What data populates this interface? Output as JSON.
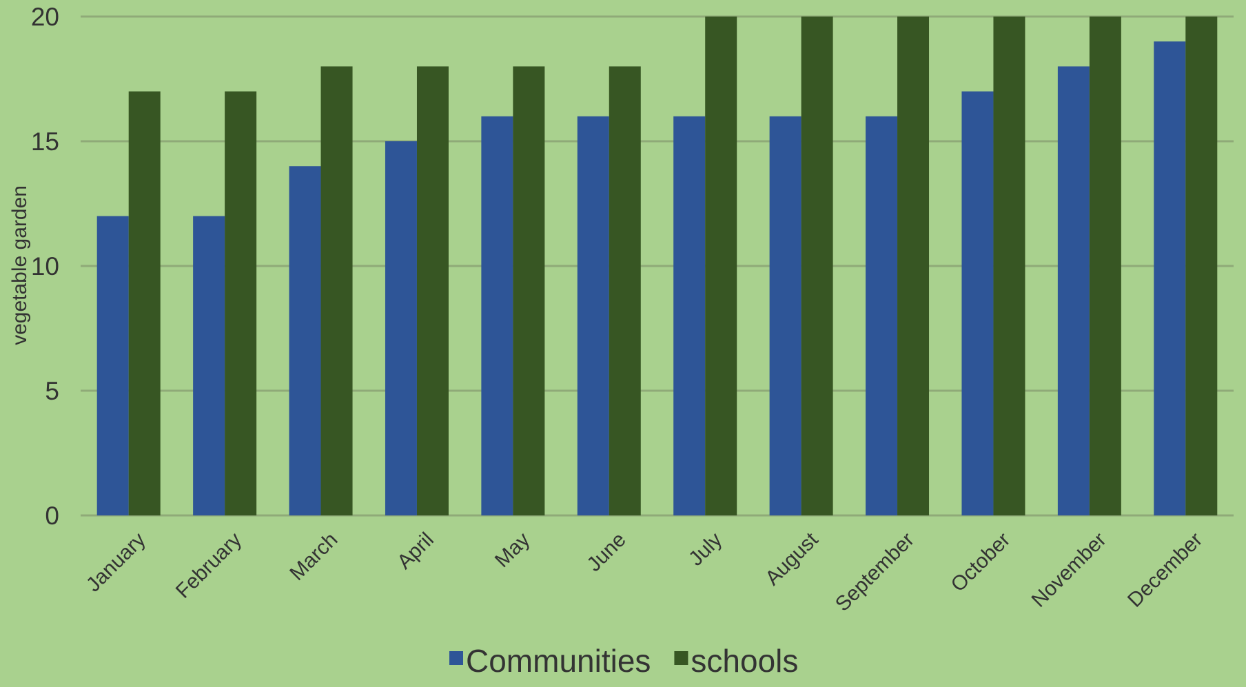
{
  "chart_data": {
    "type": "bar",
    "title": "",
    "xlabel": "",
    "ylabel": "vegetable garden",
    "categories": [
      "January",
      "February",
      "March",
      "April",
      "May",
      "June",
      "July",
      "August",
      "September",
      "October",
      "November",
      "December"
    ],
    "series": [
      {
        "name": "Communities",
        "values": [
          12,
          12,
          14,
          15,
          16,
          16,
          16,
          16,
          16,
          17,
          18,
          19
        ],
        "color": "#2e5597"
      },
      {
        "name": "schools",
        "values": [
          17,
          17,
          18,
          18,
          18,
          18,
          20,
          20,
          20,
          20,
          20,
          20
        ],
        "color": "#375623"
      }
    ],
    "ylim": [
      0,
      20
    ],
    "yticks": [
      0,
      5,
      10,
      15,
      20
    ],
    "grid": true,
    "legend_position": "bottom",
    "colors": {
      "background": "#a9d18e",
      "gridline": "#8faa78",
      "text": "#333333"
    }
  }
}
